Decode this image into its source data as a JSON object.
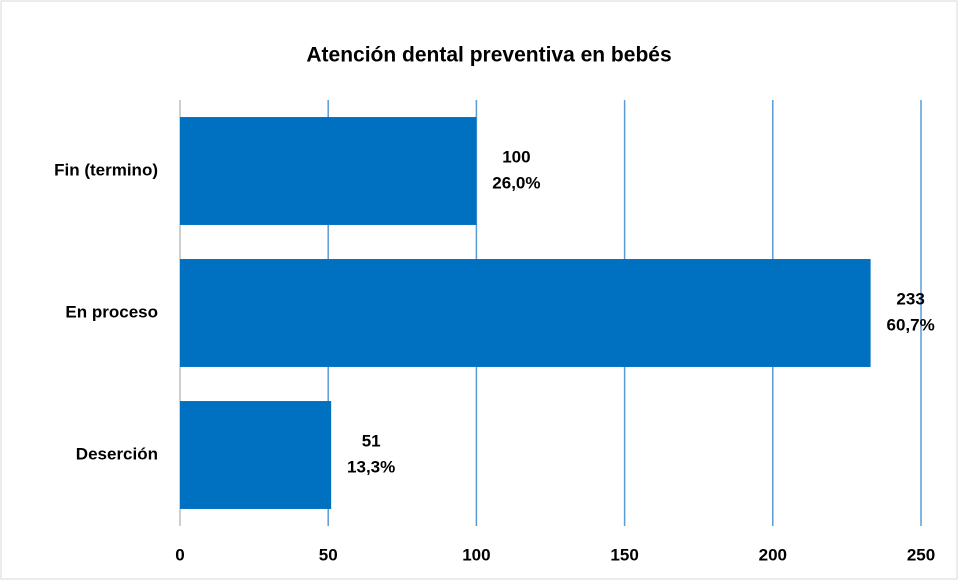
{
  "chart_data": {
    "type": "bar",
    "orientation": "horizontal",
    "title": "Atención dental preventiva en bebés",
    "categories": [
      "Fin (termino)",
      "En proceso",
      "Deserción"
    ],
    "values": [
      100,
      233,
      51
    ],
    "share_labels": [
      "26,0%",
      "60,7%",
      "13,3%"
    ],
    "color": "#0070c0",
    "xlim": [
      0,
      250
    ],
    "xticks": [
      0,
      50,
      100,
      150,
      200,
      250
    ],
    "grid": true
  }
}
